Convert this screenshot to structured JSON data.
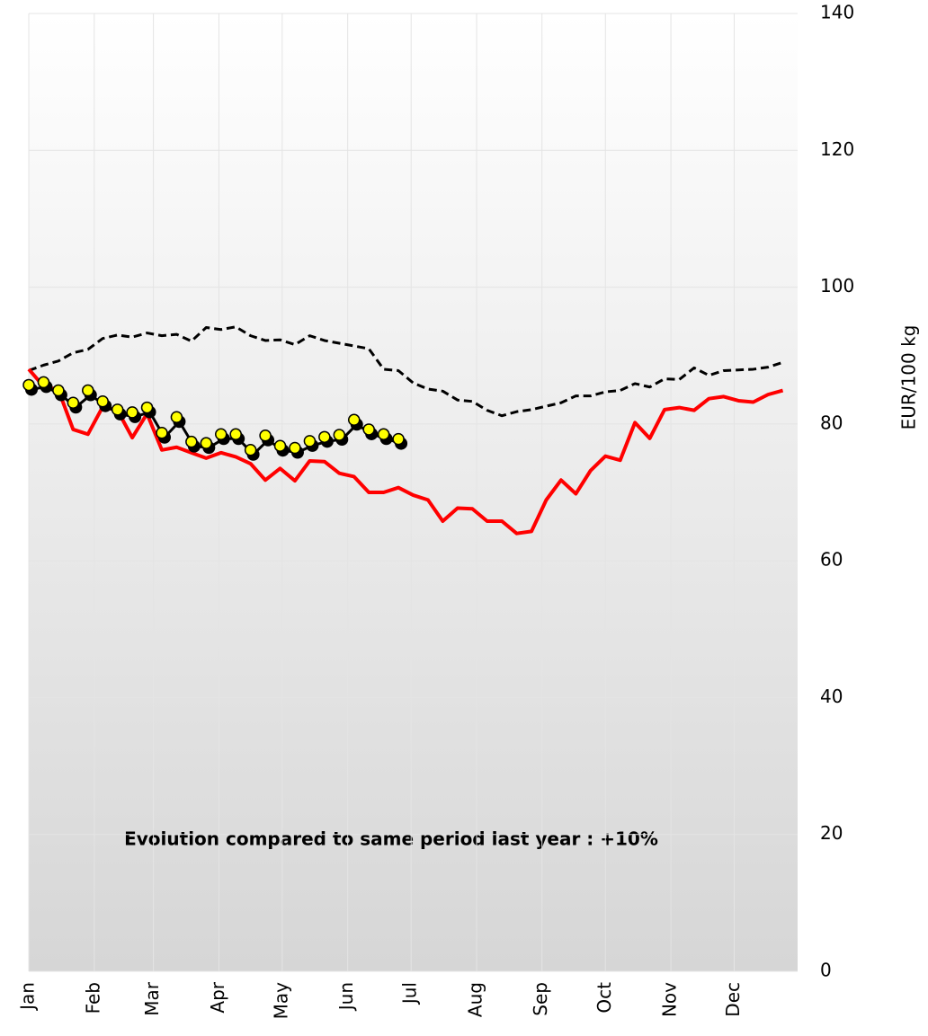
{
  "chart_data": {
    "type": "line",
    "y_label": "EUR/100 kg",
    "annotation": "Evolution compared to same period last year : +10%",
    "xlim": [
      0,
      52
    ],
    "xticks": [
      {
        "value": 0,
        "label": "Jan"
      },
      {
        "value": 4.43,
        "label": "Feb"
      },
      {
        "value": 8.43,
        "label": "Mar"
      },
      {
        "value": 12.86,
        "label": "Apr"
      },
      {
        "value": 17.14,
        "label": "May"
      },
      {
        "value": 21.57,
        "label": "Jun"
      },
      {
        "value": 25.86,
        "label": "Jul"
      },
      {
        "value": 30.29,
        "label": "Aug"
      },
      {
        "value": 34.71,
        "label": "Sep"
      },
      {
        "value": 39,
        "label": "Oct"
      },
      {
        "value": 43.43,
        "label": "Nov"
      },
      {
        "value": 47.71,
        "label": "Dec"
      }
    ],
    "ylim": [
      0,
      140
    ],
    "yticks": [
      0,
      20,
      40,
      60,
      80,
      100,
      120,
      140
    ],
    "grid": true,
    "x": [
      0,
      1,
      2,
      3,
      4,
      5,
      6,
      7,
      8,
      9,
      10,
      11,
      12,
      13,
      14,
      15,
      16,
      17,
      18,
      19,
      20,
      21,
      22,
      23,
      24,
      25,
      26,
      27,
      28,
      29,
      30,
      31,
      32,
      33,
      34,
      35,
      36,
      37,
      38,
      39,
      40,
      41,
      42,
      43,
      44,
      45,
      46,
      47,
      48,
      49,
      50,
      51
    ],
    "series": [
      {
        "color": "#000000",
        "style": "dashed",
        "values": [
          87.8,
          88.6,
          89.2,
          90.4,
          90.9,
          92.5,
          93.0,
          92.7,
          93.3,
          92.9,
          93.1,
          92.1,
          94.1,
          93.8,
          94.2,
          92.9,
          92.2,
          92.3,
          91.6,
          92.9,
          92.2,
          91.8,
          91.4,
          91.0,
          88.0,
          87.8,
          86.0,
          85.1,
          84.8,
          83.5,
          83.3,
          82.0,
          81.2,
          81.8,
          82.1,
          82.6,
          83.1,
          84.1,
          84.1,
          84.7,
          84.9,
          85.9,
          85.4,
          86.6,
          86.5,
          88.2,
          87.1,
          87.8,
          87.9,
          88.0,
          88.3,
          89.0
        ]
      },
      {
        "color": "#ff0000",
        "style": "solid",
        "values": [
          88.0,
          85.5,
          85.0,
          79.2,
          78.5,
          82.5,
          82.0,
          78.0,
          81.5,
          76.2,
          76.6,
          75.8,
          75.0,
          75.8,
          75.2,
          74.2,
          71.8,
          73.5,
          71.7,
          74.6,
          74.5,
          72.8,
          72.3,
          70.0,
          70.0,
          70.7,
          69.6,
          68.9,
          65.8,
          67.7,
          67.6,
          65.8,
          65.8,
          64.0,
          64.3,
          68.9,
          71.8,
          69.8,
          73.2,
          75.3,
          74.7,
          80.2,
          77.9,
          82.1,
          82.4,
          82.0,
          83.7,
          84.0,
          83.4,
          83.2,
          84.3,
          84.9
        ]
      },
      {
        "color": "#ffff00",
        "style": "markers",
        "values": [
          85.7,
          86.1,
          84.9,
          83.1,
          84.9,
          83.3,
          82.1,
          81.7,
          82.4,
          78.7,
          81.0,
          77.4,
          77.2,
          78.5,
          78.5,
          76.2,
          78.3,
          76.8,
          76.5,
          77.5,
          78.1,
          78.4,
          80.6,
          79.2,
          78.5,
          77.8,
          null,
          null,
          null,
          null,
          null,
          null,
          null,
          null,
          null,
          null,
          null,
          null,
          null,
          null,
          null,
          null,
          null,
          null,
          null,
          null,
          null,
          null,
          null,
          null,
          null,
          null
        ]
      }
    ]
  }
}
